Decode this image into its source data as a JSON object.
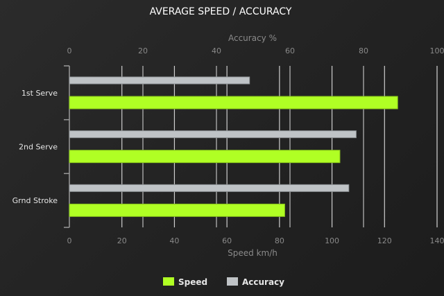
{
  "chart_data": {
    "type": "bar",
    "orientation": "horizontal",
    "title": "AVERAGE SPEED / ACCURACY",
    "categories": [
      "1st Serve",
      "2nd Serve",
      "Grnd Stroke"
    ],
    "series": [
      {
        "name": "Accuracy",
        "axis": "top",
        "color": "#bfc3c6",
        "values": [
          49,
          78,
          76
        ]
      },
      {
        "name": "Speed",
        "axis": "bottom",
        "color": "#b0ff24",
        "values": [
          125,
          103,
          82
        ]
      }
    ],
    "top_axis": {
      "label": "Accuracy %",
      "range": [
        0,
        100
      ],
      "ticks": [
        0,
        20,
        40,
        60,
        80,
        100
      ]
    },
    "bottom_axis": {
      "label": "Speed km/h",
      "range": [
        0,
        140
      ],
      "ticks": [
        0,
        20,
        40,
        60,
        80,
        100,
        120,
        140
      ]
    },
    "grid": true,
    "legend": {
      "position": "bottom",
      "entries": [
        "Speed",
        "Accuracy"
      ]
    }
  }
}
